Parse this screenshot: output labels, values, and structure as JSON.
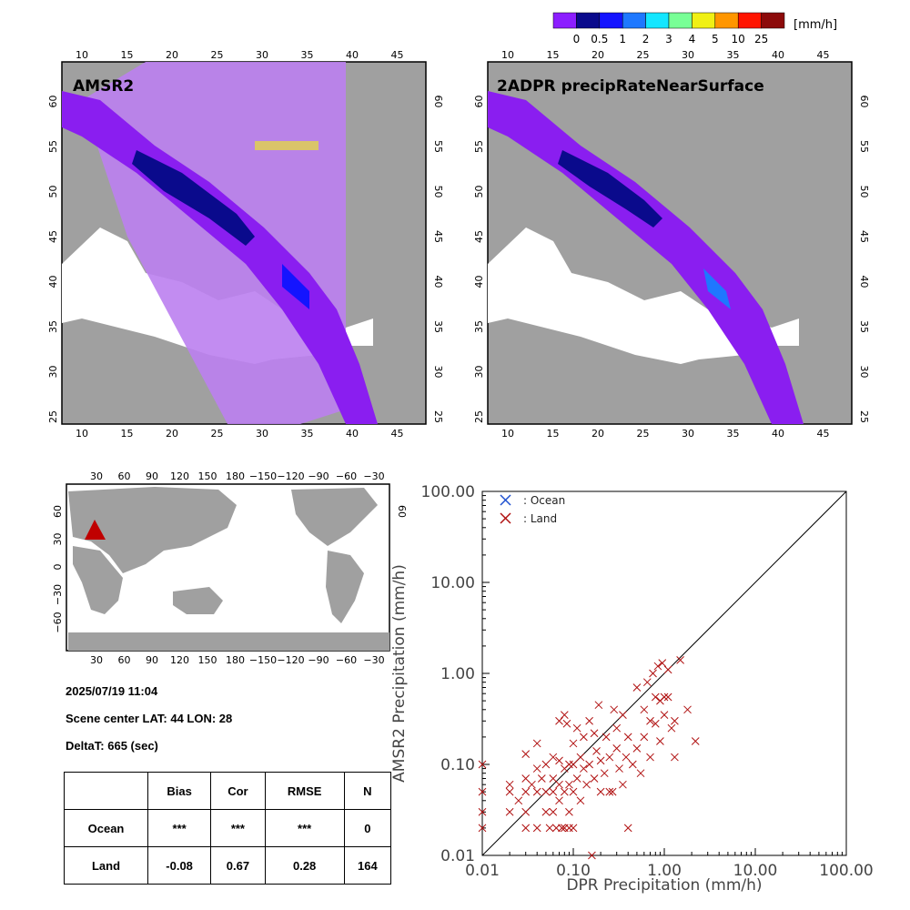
{
  "colorbar": {
    "unit": "[mm/h]",
    "colors": [
      "#8c1eff",
      "#0a0a8c",
      "#1414ff",
      "#1e78ff",
      "#14e6ff",
      "#78ff96",
      "#f0f014",
      "#ff9600",
      "#ff1400",
      "#8c0a0a"
    ],
    "ticks": [
      "0",
      "0.5",
      "1",
      "2",
      "3",
      "4",
      "5",
      "10",
      "25"
    ]
  },
  "maps": {
    "left_title": "AMSR2",
    "right_title": "2ADPR precipRateNearSurface",
    "lon_ticks": [
      "10",
      "15",
      "20",
      "25",
      "30",
      "35",
      "40",
      "45"
    ],
    "lat_ticks": [
      "25",
      "30",
      "35",
      "40",
      "45",
      "50",
      "55",
      "60"
    ]
  },
  "world_map": {
    "top_lon_ticks": [
      "30",
      "60",
      "90",
      "120",
      "150",
      "180",
      "−150",
      "−120",
      "−90",
      "−60",
      "−30"
    ],
    "bottom_lon_ticks": [
      "30",
      "60",
      "90",
      "120",
      "150",
      "180",
      "−150",
      "−120",
      "−90",
      "−60",
      "−30"
    ],
    "lat_ticks": [
      "60",
      "30",
      "0",
      "−30",
      "−60"
    ],
    "marker_color": "#c00000"
  },
  "scene": {
    "datetime": "2025/07/19 11:04",
    "center": "Scene center LAT: 44   LON:  28",
    "deltat": "DeltaT:  665 (sec)"
  },
  "stats_table": {
    "headers": [
      "",
      "Bias",
      "Cor",
      "RMSE",
      "N"
    ],
    "rows": [
      {
        "label": "Ocean",
        "bias": "***",
        "cor": "***",
        "rmse": "***",
        "n": "0"
      },
      {
        "label": "Land",
        "bias": "-0.08",
        "cor": "0.67",
        "rmse": "0.28",
        "n": "164"
      }
    ]
  },
  "chart_data": {
    "type": "scatter",
    "xlabel": "DPR Precipitation (mm/h)",
    "ylabel": "AMSR2 Precipitation (mm/h)",
    "x_scale": "log",
    "y_scale": "log",
    "xlim": [
      0.01,
      100
    ],
    "ylim": [
      0.01,
      100
    ],
    "x_tick_labels": [
      "0.01",
      "0.10",
      "1.00",
      "10.00",
      "100.00"
    ],
    "y_tick_labels": [
      "0.01",
      "0.10",
      "1.00",
      "10.00",
      "100.00"
    ],
    "legend_position": "top-left",
    "one_to_one_line": true,
    "series": [
      {
        "name": ": Ocean",
        "color": "#1e50d0",
        "points": []
      },
      {
        "name": ": Land",
        "color": "#b01010",
        "points": [
          [
            0.01,
            0.1
          ],
          [
            0.01,
            0.05
          ],
          [
            0.01,
            0.03
          ],
          [
            0.01,
            0.02
          ],
          [
            0.02,
            0.06
          ],
          [
            0.02,
            0.05
          ],
          [
            0.02,
            0.03
          ],
          [
            0.025,
            0.04
          ],
          [
            0.03,
            0.13
          ],
          [
            0.03,
            0.07
          ],
          [
            0.03,
            0.05
          ],
          [
            0.03,
            0.03
          ],
          [
            0.03,
            0.02
          ],
          [
            0.035,
            0.06
          ],
          [
            0.04,
            0.17
          ],
          [
            0.04,
            0.09
          ],
          [
            0.04,
            0.05
          ],
          [
            0.04,
            0.02
          ],
          [
            0.045,
            0.07
          ],
          [
            0.05,
            0.1
          ],
          [
            0.05,
            0.05
          ],
          [
            0.05,
            0.03
          ],
          [
            0.055,
            0.02
          ],
          [
            0.06,
            0.12
          ],
          [
            0.06,
            0.07
          ],
          [
            0.06,
            0.05
          ],
          [
            0.06,
            0.03
          ],
          [
            0.065,
            0.02
          ],
          [
            0.07,
            0.3
          ],
          [
            0.07,
            0.11
          ],
          [
            0.07,
            0.06
          ],
          [
            0.07,
            0.04
          ],
          [
            0.075,
            0.02
          ],
          [
            0.08,
            0.35
          ],
          [
            0.08,
            0.09
          ],
          [
            0.08,
            0.05
          ],
          [
            0.08,
            0.02
          ],
          [
            0.085,
            0.28
          ],
          [
            0.09,
            0.1
          ],
          [
            0.09,
            0.06
          ],
          [
            0.09,
            0.03
          ],
          [
            0.09,
            0.02
          ],
          [
            0.1,
            0.17
          ],
          [
            0.1,
            0.1
          ],
          [
            0.1,
            0.05
          ],
          [
            0.1,
            0.02
          ],
          [
            0.11,
            0.25
          ],
          [
            0.11,
            0.07
          ],
          [
            0.12,
            0.12
          ],
          [
            0.12,
            0.04
          ],
          [
            0.13,
            0.2
          ],
          [
            0.13,
            0.09
          ],
          [
            0.14,
            0.06
          ],
          [
            0.15,
            0.3
          ],
          [
            0.15,
            0.1
          ],
          [
            0.16,
            0.01
          ],
          [
            0.17,
            0.22
          ],
          [
            0.17,
            0.07
          ],
          [
            0.18,
            0.14
          ],
          [
            0.19,
            0.45
          ],
          [
            0.2,
            0.11
          ],
          [
            0.2,
            0.05
          ],
          [
            0.22,
            0.08
          ],
          [
            0.23,
            0.2
          ],
          [
            0.25,
            0.12
          ],
          [
            0.25,
            0.05
          ],
          [
            0.27,
            0.05
          ],
          [
            0.28,
            0.4
          ],
          [
            0.3,
            0.25
          ],
          [
            0.3,
            0.15
          ],
          [
            0.32,
            0.09
          ],
          [
            0.35,
            0.35
          ],
          [
            0.35,
            0.06
          ],
          [
            0.38,
            0.12
          ],
          [
            0.4,
            0.2
          ],
          [
            0.4,
            0.02
          ],
          [
            0.45,
            0.1
          ],
          [
            0.5,
            0.7
          ],
          [
            0.5,
            0.15
          ],
          [
            0.55,
            0.08
          ],
          [
            0.6,
            0.4
          ],
          [
            0.6,
            0.2
          ],
          [
            0.65,
            0.8
          ],
          [
            0.7,
            0.3
          ],
          [
            0.7,
            0.12
          ],
          [
            0.75,
            1.0
          ],
          [
            0.8,
            0.55
          ],
          [
            0.8,
            0.28
          ],
          [
            0.85,
            1.2
          ],
          [
            0.9,
            0.5
          ],
          [
            0.9,
            0.18
          ],
          [
            0.95,
            1.3
          ],
          [
            1.0,
            0.55
          ],
          [
            1.0,
            0.35
          ],
          [
            1.1,
            1.1
          ],
          [
            1.1,
            0.55
          ],
          [
            1.2,
            0.25
          ],
          [
            1.3,
            0.3
          ],
          [
            1.3,
            0.12
          ],
          [
            1.5,
            1.4
          ],
          [
            1.8,
            0.4
          ],
          [
            2.2,
            0.18
          ]
        ]
      }
    ]
  }
}
